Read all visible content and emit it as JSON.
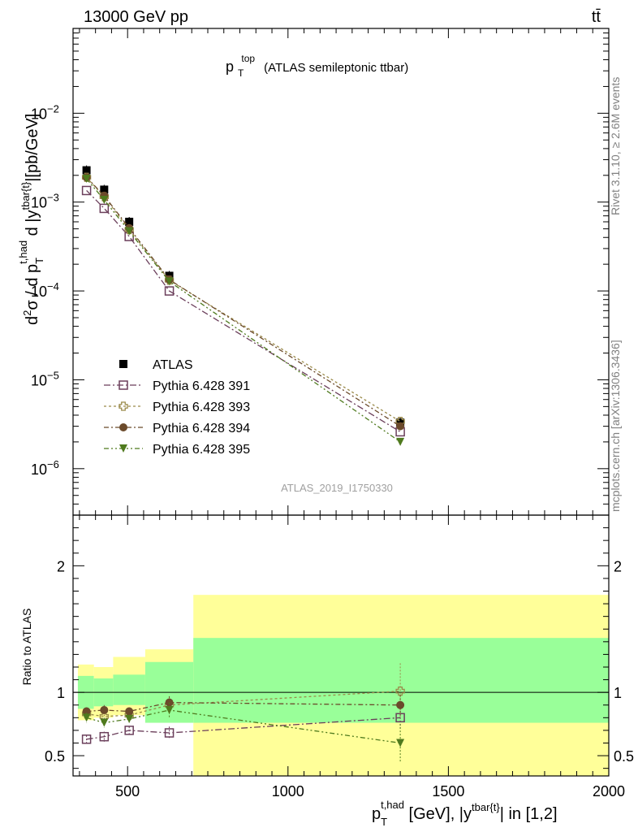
{
  "header": {
    "energy_label": "13000 GeV pp",
    "process_label": "tt̄",
    "side_label_top": "Rivet 3.1.10, ≥ 2.6M events",
    "side_label_bottom": "mcplots.cern.ch [arXiv:1306.3436]",
    "analysis_id": "ATLAS_2019_I1750330",
    "title_main": "p",
    "title_sup": "top",
    "title_sub": "T",
    "title_rest": "(ATLAS semileptonic ttbar)"
  },
  "colors": {
    "atlas": "#000000",
    "p391": "#6b3f5b",
    "p393": "#9a8a4a",
    "p394": "#6b4a2b",
    "p395": "#4f7a1e",
    "band_inner": "#99ff99",
    "band_outer": "#ffff99"
  },
  "chart_data": [
    {
      "type": "scatter",
      "panel": "main",
      "xlabel": "p_T^{t,had} [GeV], |y^{tbar{t}}| in [1,2]",
      "ylabel": "d²σ / d p_T^{t,had} d |y^{tbar{t}}|[pb/GeV]",
      "xlim": [
        330,
        2000
      ],
      "ylim": [
        3e-07,
        0.09
      ],
      "yscale": "log",
      "x_ticks": [
        500,
        1000,
        1500,
        2000
      ],
      "y_tick_labels": [
        "10^-6",
        "10^-5",
        "10^-4",
        "10^-3",
        "10^-2"
      ],
      "legend_position": "middle-left",
      "series": [
        {
          "name": "ATLAS",
          "key": "atlas",
          "marker": "square-filled",
          "x": [
            372,
            427,
            505,
            630,
            1350
          ],
          "y": [
            0.00228,
            0.00138,
            0.0006,
            0.000148,
            3.3e-06
          ]
        },
        {
          "name": "Pythia 6.428 391",
          "key": "p391",
          "marker": "square-open",
          "x": [
            372,
            427,
            505,
            630,
            1350
          ],
          "y": [
            0.00135,
            0.00085,
            0.00041,
            0.0001,
            2.6e-06
          ]
        },
        {
          "name": "Pythia 6.428 393",
          "key": "p393",
          "marker": "cross-open",
          "x": [
            372,
            427,
            505,
            630,
            1350
          ],
          "y": [
            0.0019,
            0.00115,
            0.00049,
            0.000132,
            3.4e-06
          ]
        },
        {
          "name": "Pythia 6.428 394",
          "key": "p394",
          "marker": "circle-filled",
          "x": [
            372,
            427,
            505,
            630,
            1350
          ],
          "y": [
            0.0019,
            0.00118,
            0.00051,
            0.000134,
            3e-06
          ]
        },
        {
          "name": "Pythia 6.428 395",
          "key": "p395",
          "marker": "triangle-down-filled",
          "x": [
            372,
            427,
            505,
            630,
            1350
          ],
          "y": [
            0.00183,
            0.00106,
            0.00047,
            0.000128,
            2e-06
          ]
        }
      ]
    },
    {
      "type": "scatter",
      "panel": "ratio",
      "ylabel": "Ratio to ATLAS",
      "xlim": [
        330,
        2000
      ],
      "ylim": [
        0.34,
        2.4
      ],
      "y_ticks": [
        0.5,
        1,
        2
      ],
      "bins": [
        {
          "x_low": 345,
          "x_high": 395,
          "inner": [
            0.87,
            1.13
          ],
          "outer": [
            0.78,
            1.22
          ]
        },
        {
          "x_low": 395,
          "x_high": 455,
          "inner": [
            0.89,
            1.11
          ],
          "outer": [
            0.8,
            1.2
          ]
        },
        {
          "x_low": 455,
          "x_high": 555,
          "inner": [
            0.9,
            1.14
          ],
          "outer": [
            0.82,
            1.28
          ]
        },
        {
          "x_low": 555,
          "x_high": 705,
          "inner": [
            0.76,
            1.24
          ],
          "outer": [
            0.76,
            1.34
          ]
        },
        {
          "x_low": 705,
          "x_high": 2000,
          "inner": [
            0.76,
            1.43
          ],
          "outer": [
            0.34,
            1.77
          ]
        }
      ],
      "series": [
        {
          "name": "Pythia 6.428 391",
          "key": "p391",
          "marker": "square-open",
          "x": [
            372,
            427,
            505,
            630,
            1350
          ],
          "y": [
            0.63,
            0.65,
            0.7,
            0.68,
            0.8
          ],
          "err": [
            0.03,
            0.04,
            0.03,
            0.05,
            0.08
          ]
        },
        {
          "name": "Pythia 6.428 393",
          "key": "p393",
          "marker": "cross-open",
          "x": [
            372,
            427,
            505,
            630,
            1350
          ],
          "y": [
            0.83,
            0.81,
            0.82,
            0.9,
            1.01
          ],
          "err": [
            0.04,
            0.04,
            0.03,
            0.06,
            0.22
          ]
        },
        {
          "name": "Pythia 6.428 394",
          "key": "p394",
          "marker": "circle-filled",
          "x": [
            372,
            427,
            505,
            630,
            1350
          ],
          "y": [
            0.85,
            0.86,
            0.85,
            0.92,
            0.9
          ],
          "err": [
            0.03,
            0.04,
            0.03,
            0.05,
            0.08
          ]
        },
        {
          "name": "Pythia 6.428 395",
          "key": "p395",
          "marker": "triangle-down-filled",
          "x": [
            372,
            427,
            505,
            630,
            1350
          ],
          "y": [
            0.8,
            0.76,
            0.79,
            0.86,
            0.6
          ],
          "err": [
            0.04,
            0.04,
            0.03,
            0.06,
            0.15
          ]
        }
      ]
    }
  ]
}
